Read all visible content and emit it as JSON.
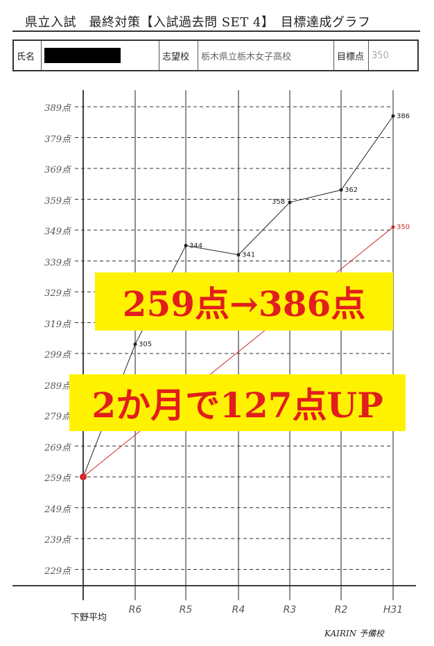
{
  "header": {
    "title": "県立入試　最終対策【入試過去問 SET 4】　目標達成グラフ"
  },
  "info": {
    "name_label": "氏名",
    "school_label": "志望校",
    "school_value": "栃木県立栃木女子高校",
    "target_label": "目標点",
    "target_value": "350"
  },
  "chart_data": {
    "type": "line",
    "y_tick_labels": [
      "389点",
      "379点",
      "369点",
      "359点",
      "349点",
      "339点",
      "329点",
      "319点",
      "299点",
      "289点",
      "279点",
      "269点",
      "259点",
      "249点",
      "239点",
      "229点"
    ],
    "y_tick_values": [
      389,
      379,
      369,
      359,
      349,
      339,
      329,
      319,
      299,
      289,
      279,
      269,
      259,
      249,
      239,
      229
    ],
    "categories": [
      "下野平均",
      "R6",
      "R5",
      "R4",
      "R3",
      "R2",
      "H31"
    ],
    "grid": true,
    "series": [
      {
        "color": "#222222",
        "values": [
          259,
          305,
          344,
          341,
          358,
          362,
          386
        ],
        "labels": [
          "",
          "305",
          "344",
          "341",
          "358",
          "362",
          "386"
        ]
      },
      {
        "color": "#cc2a2a",
        "values": [
          259,
          null,
          null,
          null,
          null,
          null,
          350
        ],
        "labels": [
          "",
          "",
          "",
          "",
          "",
          "",
          "350"
        ]
      }
    ]
  },
  "overlays": {
    "banner1": "259点→386点",
    "banner2": "2か月で127点UP"
  },
  "footer": {
    "brand": "KAIRIN 予備校"
  },
  "colors": {
    "highlight": "#fff200",
    "accent_red": "#e21d1d"
  }
}
